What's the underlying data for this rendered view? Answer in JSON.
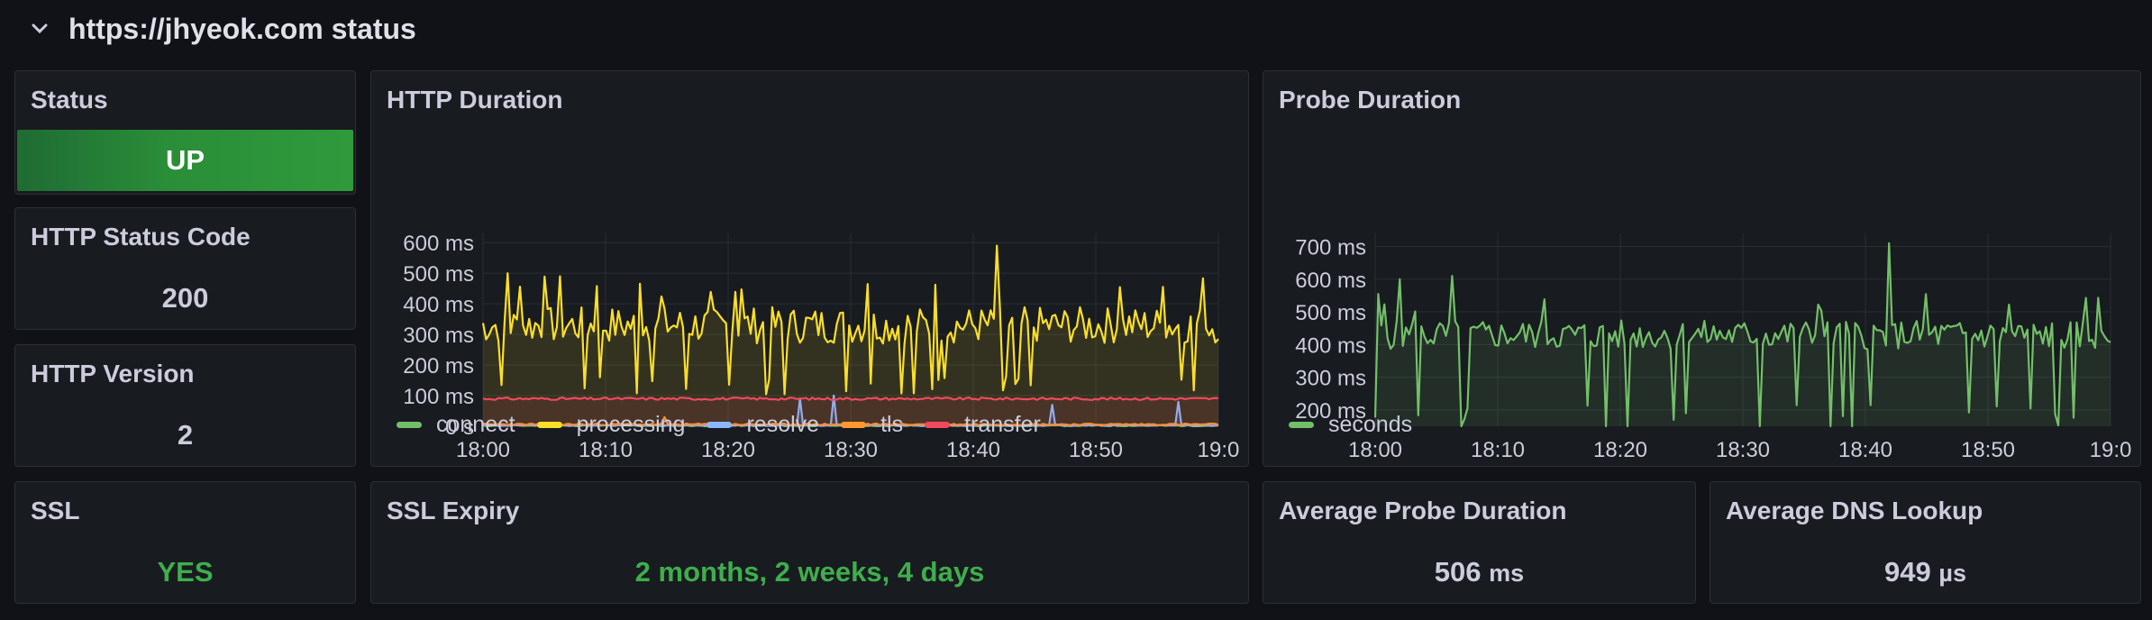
{
  "row": {
    "title": "https://jhyeok.com status"
  },
  "status": {
    "title": "Status",
    "value": "UP",
    "color": "#2a8e38"
  },
  "http_status": {
    "title": "HTTP Status Code",
    "value": "200"
  },
  "http_version": {
    "title": "HTTP Version",
    "value": "2"
  },
  "ssl": {
    "title": "SSL",
    "value": "YES"
  },
  "ssl_expiry": {
    "title": "SSL Expiry",
    "value": "2 months, 2 weeks, 4 days"
  },
  "avg_probe": {
    "title": "Average Probe Duration",
    "value": "506",
    "unit": "ms"
  },
  "avg_dns": {
    "title": "Average DNS Lookup",
    "value": "949",
    "unit": "µs"
  },
  "http_duration": {
    "title": "HTTP Duration",
    "legend": [
      {
        "name": "connect",
        "color": "#73bf69"
      },
      {
        "name": "processing",
        "color": "#fade2a"
      },
      {
        "name": "resolve",
        "color": "#8ab8ff"
      },
      {
        "name": "tls",
        "color": "#ff9830"
      },
      {
        "name": "transfer",
        "color": "#f2495c"
      }
    ]
  },
  "probe_duration": {
    "title": "Probe Duration",
    "legend": [
      {
        "name": "seconds",
        "color": "#73bf69"
      }
    ]
  },
  "chart_data": [
    {
      "type": "line",
      "title": "HTTP Duration",
      "x_ticks": [
        "18:00",
        "18:10",
        "18:20",
        "18:30",
        "18:40",
        "18:50",
        "19:0"
      ],
      "y_ticks": [
        "0 s",
        "100 ms",
        "200 ms",
        "300 ms",
        "400 ms",
        "500 ms",
        "600 ms"
      ],
      "ylim": [
        0,
        630
      ],
      "x_range_minutes": [
        0,
        60
      ],
      "series": [
        {
          "name": "connect",
          "color": "#73bf69",
          "baseline": 2,
          "amp": 2,
          "seed": 11,
          "dips": 0,
          "spikes": 0
        },
        {
          "name": "processing",
          "color": "#fade2a",
          "baseline": 330,
          "amp": 60,
          "seed": 7,
          "dips": 26,
          "spikes": 14,
          "spike_points": [
            [
              1.9,
              500
            ],
            [
              6.3,
              490
            ],
            [
              41.8,
              590
            ]
          ]
        },
        {
          "name": "resolve",
          "color": "#8ab8ff",
          "baseline": 3,
          "amp": 2,
          "seed": 19,
          "dips": 0,
          "spikes": 0,
          "spike_points": [
            [
              25.8,
              90
            ],
            [
              28.6,
              100
            ],
            [
              46.4,
              70
            ],
            [
              56.8,
              80
            ]
          ]
        },
        {
          "name": "tls",
          "color": "#ff9830",
          "baseline": 6,
          "amp": 3,
          "seed": 23,
          "dips": 0,
          "spikes": 0,
          "spike_points": [
            [
              14.8,
              30
            ]
          ]
        },
        {
          "name": "transfer",
          "color": "#f2495c",
          "baseline": 90,
          "amp": 4,
          "seed": 31,
          "dips": 0,
          "spikes": 0
        }
      ]
    },
    {
      "type": "line",
      "title": "Probe Duration",
      "x_ticks": [
        "18:00",
        "18:10",
        "18:20",
        "18:30",
        "18:40",
        "18:50",
        "19:0"
      ],
      "y_ticks": [
        "200 ms",
        "300 ms",
        "400 ms",
        "500 ms",
        "600 ms",
        "700 ms"
      ],
      "ylim": [
        150,
        740
      ],
      "x_range_minutes": [
        0,
        60
      ],
      "series": [
        {
          "name": "seconds",
          "color": "#73bf69",
          "baseline": 430,
          "amp": 45,
          "seed": 5,
          "dips": 24,
          "spikes": 10,
          "spike_points": [
            [
              1.9,
              600
            ],
            [
              6.3,
              610
            ],
            [
              41.8,
              710
            ]
          ]
        }
      ]
    }
  ]
}
